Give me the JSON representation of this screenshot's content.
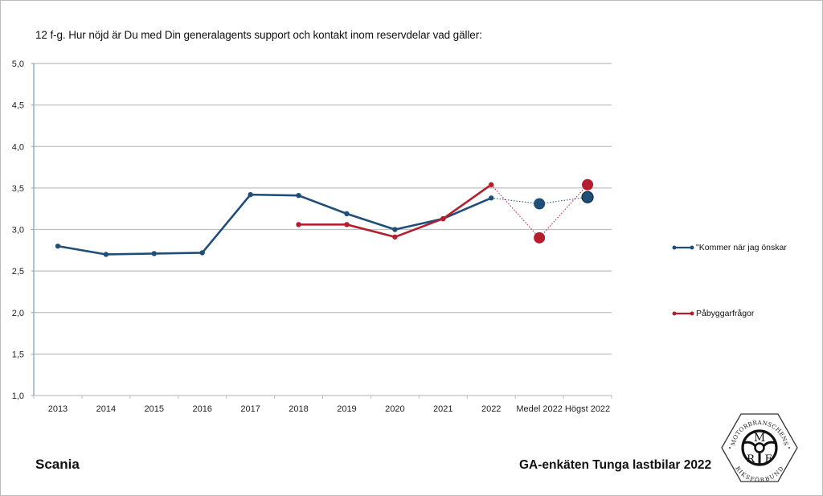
{
  "chart_data": {
    "type": "line",
    "title": "12 f-g. Hur nöjd är Du med Din generalagents support och kontakt inom reservdelar vad gäller:",
    "xlabel": "",
    "ylabel": "",
    "ylim": [
      1.0,
      5.0
    ],
    "yticks": [
      "1,0",
      "1,5",
      "2,0",
      "2,5",
      "3,0",
      "3,5",
      "4,0",
      "4,5",
      "5,0"
    ],
    "ytick_values": [
      1.0,
      1.5,
      2.0,
      2.5,
      3.0,
      3.5,
      4.0,
      4.5,
      5.0
    ],
    "grid": true,
    "legend_position": "right",
    "categories": [
      "2013",
      "2014",
      "2015",
      "2016",
      "2017",
      "2018",
      "2019",
      "2020",
      "2021",
      "2022",
      "Medel 2022",
      "Högst 2022"
    ],
    "series": [
      {
        "name": "\"Kommer när jag önskar",
        "color": "#1f4e79",
        "values": [
          2.8,
          2.7,
          2.71,
          2.72,
          3.42,
          3.41,
          3.19,
          3.0,
          3.13,
          3.38,
          null,
          null
        ],
        "summary": {
          "Medel 2022": 3.31,
          "Högst 2022": 3.39
        }
      },
      {
        "name": "Påbyggarfrågor",
        "color": "#b41f2e",
        "values": [
          null,
          null,
          null,
          null,
          null,
          3.06,
          3.06,
          2.91,
          3.13,
          3.54,
          null,
          null
        ],
        "summary": {
          "Medel 2022": 2.9,
          "Högst 2022": 3.54
        }
      }
    ]
  },
  "footer": {
    "brand": "Scania",
    "survey": "GA-enkäten Tunga lastbilar 2022"
  },
  "logo": {
    "top_text": "MOTORBRANSCHENS",
    "bottom_text": "RIKSFÖRBUND",
    "letters": [
      "M",
      "R",
      "F"
    ]
  }
}
